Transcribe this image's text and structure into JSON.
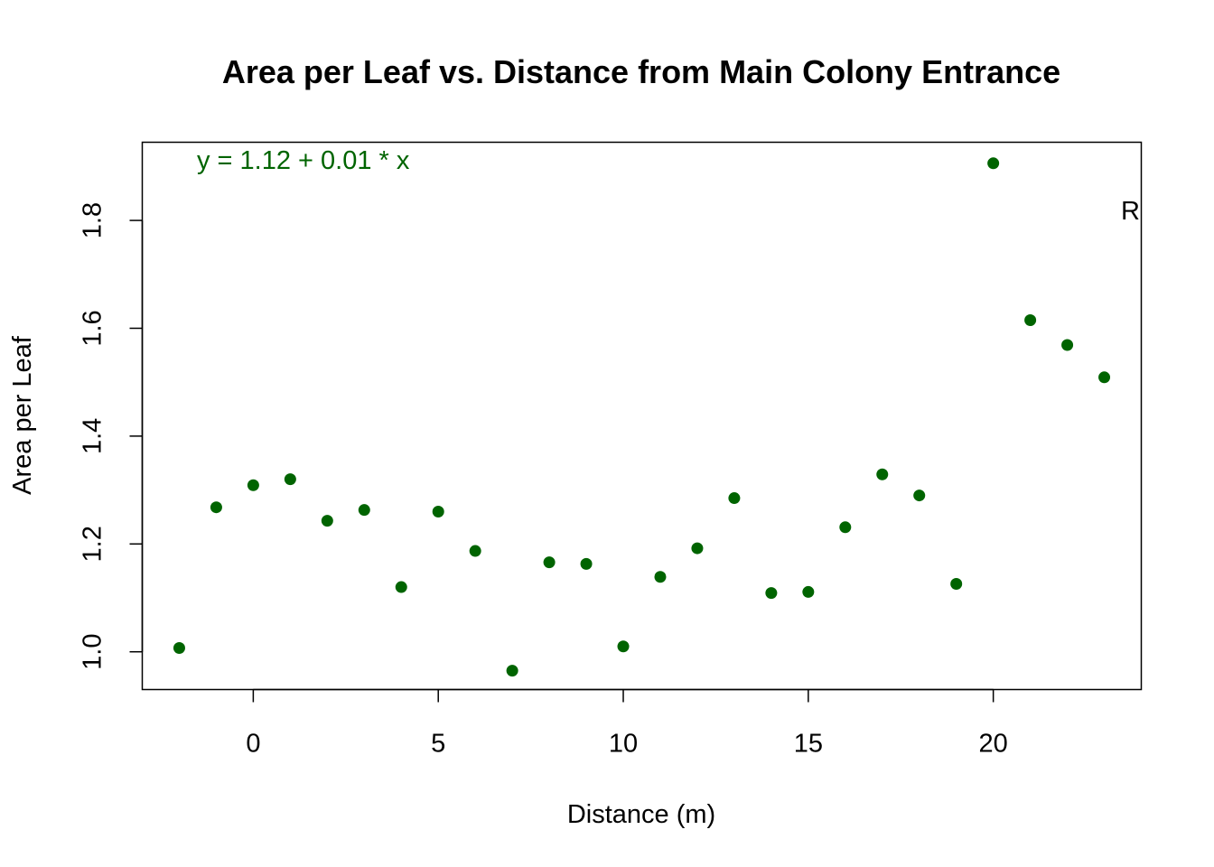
{
  "chart_data": {
    "type": "scatter",
    "title": "Area per Leaf vs. Distance from Main Colony Entrance",
    "xlabel": "Distance (m)",
    "ylabel": "Area per Leaf",
    "xlim": [
      -3,
      24
    ],
    "ylim": [
      0.93,
      1.945
    ],
    "x_ticks": [
      0,
      5,
      10,
      15,
      20
    ],
    "y_ticks": [
      1.0,
      1.2,
      1.4,
      1.6,
      1.8
    ],
    "x_tick_labels": [
      "0",
      "5",
      "10",
      "15",
      "20"
    ],
    "y_tick_labels": [
      "1.0",
      "1.2",
      "1.4",
      "1.6",
      "1.8"
    ],
    "point_color": "#006400",
    "grid": false,
    "annotations": {
      "equation": "y = 1.12 + 0.01 * x",
      "equation_color": "#006400",
      "r_label": "R"
    },
    "x": [
      -2,
      -1,
      0,
      1,
      2,
      3,
      4,
      5,
      6,
      7,
      8,
      9,
      10,
      11,
      12,
      13,
      14,
      15,
      16,
      17,
      18,
      19,
      20,
      21,
      22,
      23
    ],
    "y": [
      1.007,
      1.268,
      1.309,
      1.32,
      1.243,
      1.263,
      1.12,
      1.26,
      1.187,
      0.965,
      1.166,
      1.163,
      1.01,
      1.139,
      1.192,
      1.285,
      1.109,
      1.111,
      1.231,
      1.329,
      1.29,
      1.126,
      1.906,
      1.615,
      1.569,
      1.509
    ]
  }
}
